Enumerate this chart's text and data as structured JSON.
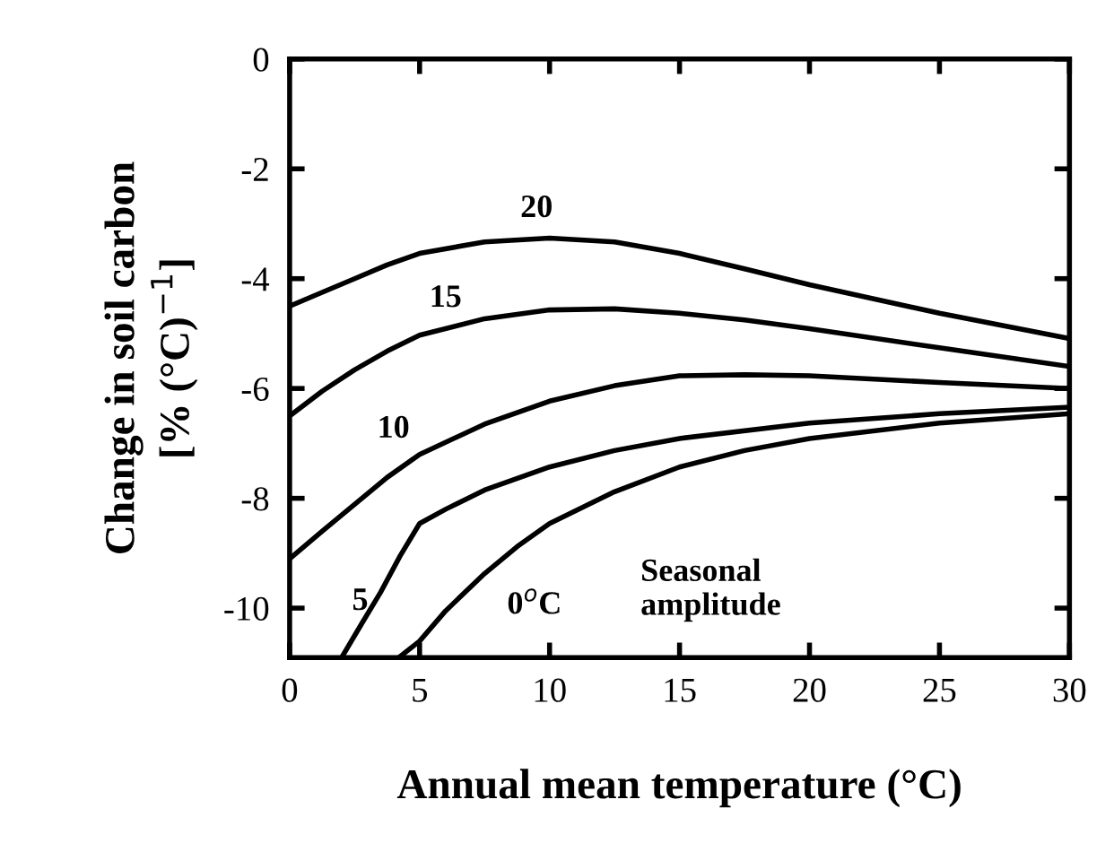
{
  "chart_data": {
    "type": "line",
    "xlabel": "Annual mean temperature (°C)",
    "ylabel": "Change in soil carbon\n[% (°C)$^{−1}$]",
    "xlim": [
      0,
      30
    ],
    "ylim": [
      -10.9,
      0
    ],
    "xticks": [
      0,
      5,
      10,
      15,
      20,
      25,
      30
    ],
    "yticks": [
      0,
      -2,
      -4,
      -6,
      -8,
      -10
    ],
    "grid": false,
    "marker": "none",
    "line_style": "solid",
    "annotations": [
      "Seasonal\namplitude"
    ],
    "series": [
      {
        "name": "20",
        "color": "#000000",
        "x": [
          0,
          1.25,
          2.5,
          3.75,
          5,
          7.5,
          10,
          12.5,
          15,
          17.5,
          20,
          25,
          30
        ],
        "values": [
          -4.5,
          -4.25,
          -4.0,
          -3.75,
          -3.54,
          -3.33,
          -3.26,
          -3.33,
          -3.54,
          -3.82,
          -4.11,
          -4.63,
          -5.09
        ]
      },
      {
        "name": "15",
        "color": "#000000",
        "x": [
          0,
          1.25,
          2.5,
          3.75,
          5,
          7.5,
          10,
          12.5,
          15,
          17.5,
          20,
          25,
          30
        ],
        "values": [
          -6.5,
          -6.05,
          -5.66,
          -5.32,
          -5.03,
          -4.73,
          -4.57,
          -4.55,
          -4.63,
          -4.75,
          -4.91,
          -5.26,
          -5.6
        ]
      },
      {
        "name": "10",
        "color": "#000000",
        "x": [
          0,
          1.25,
          2.5,
          3.75,
          5,
          7.5,
          10,
          12.5,
          15,
          17.5,
          20,
          25,
          30
        ],
        "values": [
          -9.1,
          -8.6,
          -8.11,
          -7.62,
          -7.2,
          -6.65,
          -6.23,
          -5.95,
          -5.77,
          -5.75,
          -5.77,
          -5.89,
          -6.0
        ]
      },
      {
        "name": "5",
        "color": "#000000",
        "x": [
          2.0,
          2.75,
          3.5,
          4.25,
          5,
          6,
          7.5,
          10,
          12.5,
          15,
          20,
          25,
          30
        ],
        "values": [
          -10.9,
          -10.3,
          -9.71,
          -9.05,
          -8.46,
          -8.2,
          -7.85,
          -7.43,
          -7.13,
          -6.91,
          -6.63,
          -6.46,
          -6.34
        ]
      },
      {
        "name": "0$^{o}$C",
        "color": "#000000",
        "x": [
          4.2,
          5,
          6,
          7.5,
          8.75,
          10,
          12.5,
          15,
          17.5,
          20,
          25,
          30
        ],
        "values": [
          -10.9,
          -10.6,
          -10.05,
          -9.37,
          -8.88,
          -8.46,
          -7.88,
          -7.43,
          -7.13,
          -6.91,
          -6.63,
          -6.46
        ]
      }
    ]
  }
}
